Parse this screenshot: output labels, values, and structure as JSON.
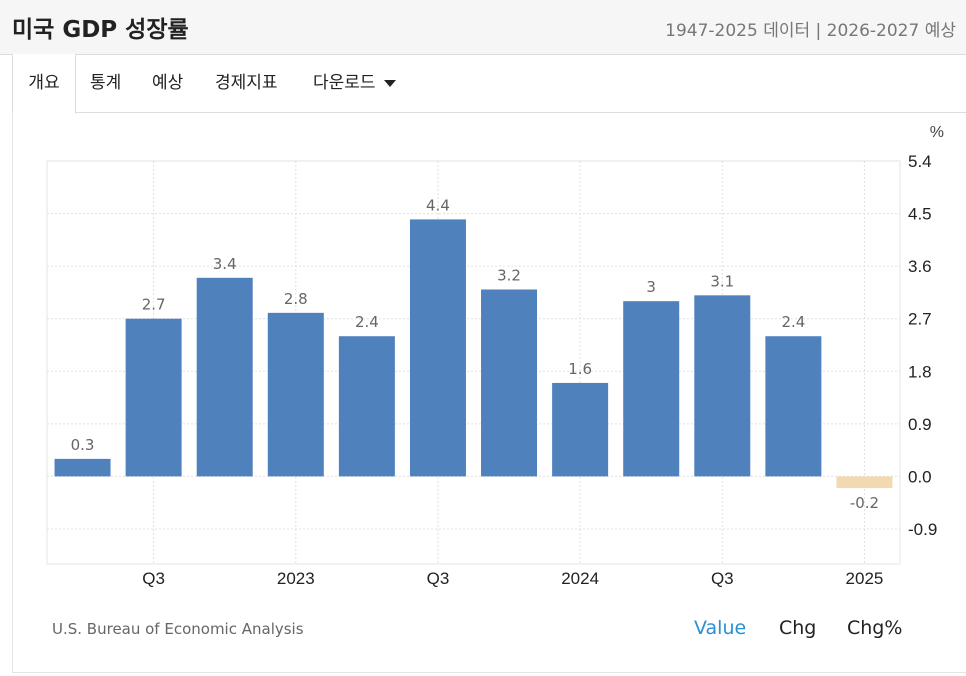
{
  "header": {
    "title": "미국 GDP 성장률",
    "subtitle": "1947-2025 데이터 | 2026-2027 예상"
  },
  "tabs": [
    {
      "label": "개요",
      "active": true
    },
    {
      "label": "통계",
      "active": false
    },
    {
      "label": "예상",
      "active": false
    },
    {
      "label": "경제지표",
      "active": false
    },
    {
      "label": "다운로드",
      "active": false,
      "has_dropdown": true
    }
  ],
  "footer": {
    "source": "U.S. Bureau of Economic Analysis",
    "modes": [
      {
        "label": "Value",
        "active": true
      },
      {
        "label": "Chg",
        "active": false
      },
      {
        "label": "Chg%",
        "active": false
      }
    ]
  },
  "colors": {
    "positive_bar": "#4f81bd",
    "negative_bar": "#f3d9b1",
    "active_mode": "#2a8fd4"
  },
  "chart_data": {
    "type": "bar",
    "unit": "%",
    "values": [
      0.3,
      2.7,
      3.4,
      2.8,
      2.4,
      4.4,
      3.2,
      1.6,
      3,
      3.1,
      2.4,
      -0.2
    ],
    "data_labels": [
      "0.3",
      "2.7",
      "3.4",
      "2.8",
      "2.4",
      "4.4",
      "3.2",
      "1.6",
      "3",
      "3.1",
      "2.4",
      "-0.2"
    ],
    "x_tick_labels": [
      "Q3",
      "2023",
      "Q3",
      "2024",
      "Q3",
      "2025"
    ],
    "x_tick_positions": [
      1.5,
      3.5,
      5.5,
      7.5,
      9.5,
      11.5
    ],
    "y_ticks": [
      5.4,
      4.5,
      3.6,
      2.7,
      1.8,
      0.9,
      0.0,
      -0.9
    ],
    "y_tick_labels": [
      "5.4",
      "4.5",
      "3.6",
      "2.7",
      "1.8",
      "0.9",
      "0.0",
      "-0.9"
    ],
    "ylim": [
      -1.5,
      5.4
    ],
    "grid": true,
    "y_axis_side": "right"
  }
}
